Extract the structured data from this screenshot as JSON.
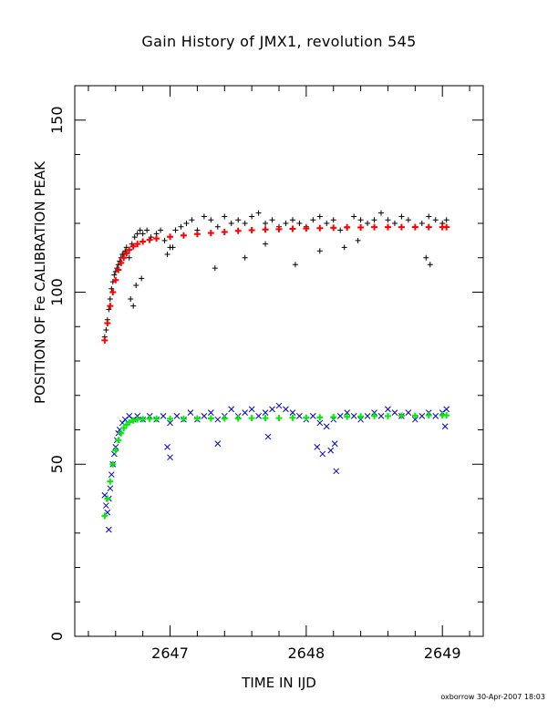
{
  "chart_data": {
    "type": "scatter",
    "title": "Gain History of JMX1, revolution 545",
    "xlabel": "TIME IN IJD",
    "ylabel": "POSITION OF Fe CALIBRATION PEAK",
    "xlim": [
      2646.3,
      2649.3
    ],
    "ylim": [
      0,
      160
    ],
    "xticks": [
      2647,
      2648,
      2649
    ],
    "yticks": [
      0,
      50,
      100,
      150
    ],
    "grid": false,
    "series": [
      {
        "marker": "plus",
        "color": "#000000",
        "x": [
          2646.52,
          2646.53,
          2646.54,
          2646.55,
          2646.56,
          2646.57,
          2646.58,
          2646.59,
          2646.6,
          2646.61,
          2646.62,
          2646.63,
          2646.64,
          2646.65,
          2646.66,
          2646.67,
          2646.68,
          2646.7,
          2646.72,
          2646.74,
          2646.76,
          2646.78,
          2646.8,
          2646.83,
          2646.86,
          2646.9,
          2646.93,
          2646.96,
          2647.0,
          2647.04,
          2647.08,
          2647.12,
          2647.16,
          2647.2,
          2647.25,
          2647.3,
          2647.35,
          2647.4,
          2647.45,
          2647.5,
          2647.55,
          2647.6,
          2647.65,
          2647.7,
          2647.75,
          2647.8,
          2647.85,
          2647.9,
          2647.95,
          2648.0,
          2648.05,
          2648.1,
          2648.15,
          2648.2,
          2648.25,
          2648.3,
          2648.35,
          2648.4,
          2648.45,
          2648.5,
          2648.55,
          2648.6,
          2648.65,
          2648.7,
          2648.75,
          2648.8,
          2648.85,
          2648.9,
          2648.95,
          2649.0,
          2649.03,
          2646.71,
          2646.73,
          2646.75,
          2646.79,
          2646.98,
          2647.02,
          2647.33,
          2647.55,
          2647.7,
          2647.92,
          2648.1,
          2648.28,
          2648.38,
          2648.88,
          2648.91
        ],
        "y": [
          87,
          89,
          92,
          95,
          98,
          101,
          103,
          105,
          106,
          107,
          108,
          109,
          110,
          111,
          111,
          112,
          113,
          110,
          114,
          116,
          117,
          118,
          117,
          118,
          116,
          117,
          118,
          115,
          113,
          118,
          119,
          120,
          121,
          118,
          122,
          121,
          119,
          122,
          120,
          121,
          120,
          122,
          123,
          120,
          121,
          119,
          120,
          121,
          120,
          119,
          121,
          122,
          120,
          121,
          118,
          119,
          122,
          121,
          120,
          121,
          123,
          121,
          120,
          122,
          121,
          119,
          120,
          122,
          121,
          120,
          121,
          98,
          96,
          102,
          104,
          111,
          113,
          107,
          110,
          114,
          108,
          112,
          113,
          115,
          110,
          108
        ]
      },
      {
        "marker": "x",
        "color": "#0000cc",
        "x": [
          2646.52,
          2646.53,
          2646.54,
          2646.55,
          2646.56,
          2646.57,
          2646.58,
          2646.59,
          2646.6,
          2646.61,
          2646.62,
          2646.63,
          2646.65,
          2646.67,
          2646.7,
          2646.73,
          2646.76,
          2646.8,
          2646.85,
          2646.9,
          2646.95,
          2647.0,
          2647.05,
          2647.1,
          2647.15,
          2647.2,
          2647.25,
          2647.3,
          2647.35,
          2647.4,
          2647.45,
          2647.5,
          2647.55,
          2647.6,
          2647.65,
          2647.7,
          2647.75,
          2647.8,
          2647.85,
          2647.9,
          2647.95,
          2648.0,
          2648.05,
          2648.1,
          2648.15,
          2648.2,
          2648.25,
          2648.3,
          2648.35,
          2648.4,
          2648.45,
          2648.5,
          2648.55,
          2648.6,
          2648.65,
          2648.7,
          2648.75,
          2648.8,
          2648.85,
          2648.9,
          2648.95,
          2649.0,
          2649.03,
          2646.55,
          2646.98,
          2647.0,
          2647.35,
          2647.72,
          2648.08,
          2648.12,
          2648.18,
          2648.21,
          2648.22,
          2649.02
        ],
        "y": [
          41,
          38,
          36,
          40,
          43,
          47,
          50,
          53,
          55,
          57,
          59,
          60,
          62,
          63,
          64,
          63,
          64,
          63,
          64,
          63,
          64,
          62,
          64,
          63,
          65,
          63,
          64,
          65,
          63,
          64,
          66,
          64,
          65,
          66,
          64,
          65,
          66,
          67,
          66,
          65,
          64,
          63,
          64,
          62,
          61,
          63,
          64,
          65,
          64,
          63,
          64,
          65,
          64,
          66,
          65,
          64,
          65,
          63,
          64,
          65,
          64,
          65,
          66,
          31,
          55,
          52,
          56,
          58,
          55,
          53,
          54,
          56,
          48,
          61
        ]
      },
      {
        "name": "",
        "marker": "plus",
        "color": "#ff0000",
        "x": [
          2646.52,
          2646.54,
          2646.56,
          2646.58,
          2646.6,
          2646.62,
          2646.64,
          2646.66,
          2646.68,
          2646.7,
          2646.73,
          2646.76,
          2646.8,
          2646.85,
          2646.9,
          2647.0,
          2647.1,
          2647.2,
          2647.3,
          2647.4,
          2647.5,
          2647.6,
          2647.7,
          2647.8,
          2647.9,
          2648.0,
          2648.1,
          2648.2,
          2648.3,
          2648.4,
          2648.5,
          2648.6,
          2648.7,
          2648.8,
          2648.9,
          2649.0,
          2649.03
        ],
        "y": [
          86,
          91,
          96,
          100,
          103.5,
          106.5,
          108.5,
          110,
          111.3,
          112.3,
          113.3,
          114,
          114.7,
          115.2,
          115.6,
          116.1,
          116.5,
          116.9,
          117.2,
          117.5,
          117.8,
          118.0,
          118.2,
          118.3,
          118.4,
          118.5,
          118.6,
          118.7,
          118.8,
          118.8,
          118.9,
          118.9,
          118.9,
          118.9,
          118.9,
          118.9,
          118.9
        ]
      },
      {
        "marker": "plus",
        "color": "#00ee00",
        "x": [
          2646.52,
          2646.54,
          2646.56,
          2646.58,
          2646.6,
          2646.62,
          2646.64,
          2646.66,
          2646.68,
          2646.7,
          2646.73,
          2646.76,
          2646.8,
          2646.85,
          2646.9,
          2647.0,
          2647.1,
          2647.2,
          2647.3,
          2647.4,
          2647.5,
          2647.6,
          2647.7,
          2647.8,
          2647.9,
          2648.0,
          2648.1,
          2648.2,
          2648.3,
          2648.4,
          2648.5,
          2648.6,
          2648.7,
          2648.8,
          2648.9,
          2649.0,
          2649.03
        ],
        "y": [
          35,
          40,
          45,
          50,
          54,
          57,
          59,
          60.5,
          61.5,
          62.2,
          62.7,
          63,
          63.1,
          63.2,
          63.2,
          63.2,
          63.2,
          63.3,
          63.3,
          63.3,
          63.3,
          63.4,
          63.4,
          63.4,
          63.5,
          63.5,
          63.6,
          63.7,
          63.8,
          63.9,
          64,
          64,
          64.1,
          64.1,
          64.2,
          64.2,
          64.2
        ]
      }
    ]
  },
  "footer": "oxborrow 30-Apr-2007 18:03"
}
